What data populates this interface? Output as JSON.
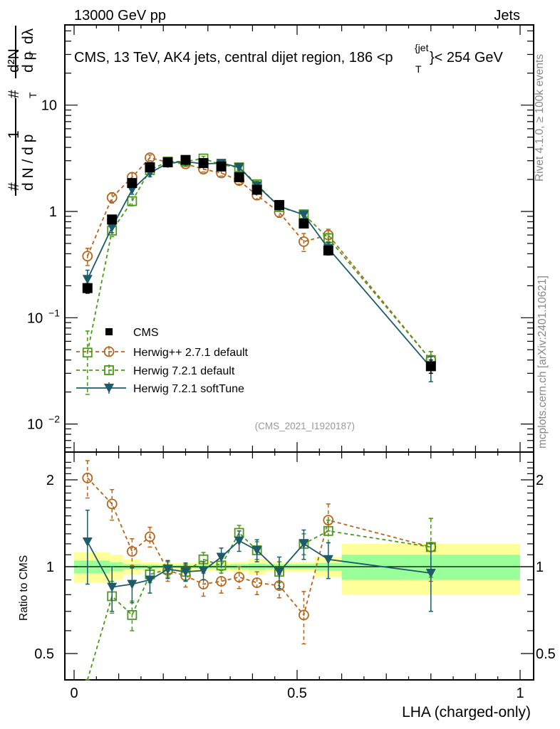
{
  "header": {
    "left": "13000 GeV pp",
    "right": "Jets"
  },
  "side_labels": {
    "rivet": "Rivet 4.1.0, ≥ 100k events",
    "mcplots": "mcplots.cern.ch [arXiv:2401.10621]"
  },
  "chart_data": [
    {
      "type": "line",
      "panel": "main",
      "title": "CMS, 13 TeV, AK4 jets, central dijet region, 186 <p_T^{jet}< 254 GeV",
      "title_parts": {
        "main": "CMS, 13 TeV, AK4 jets, central dijet region, 186 <p",
        "sup": "{jet",
        "sub": "T",
        "tail": "}< 254 GeV"
      },
      "ylabel": "1/N dN/dp_T d²N/dp_T dλ",
      "ylabel_parts": {
        "hash": "#",
        "one": "1",
        "dN": "d N / d p",
        "T": "T",
        "d2N": "d²N",
        "dpT": "d p",
        "dl": "dλ"
      },
      "xlabel": "",
      "yscale": "log",
      "ylim": [
        0.006,
        60
      ],
      "xlim": [
        -0.02,
        1.02
      ],
      "ytick_labels": [
        {
          "value": 10,
          "label": "10"
        },
        {
          "value": 1,
          "label": "1"
        },
        {
          "value": 0.1,
          "label": "10",
          "exp": "−1"
        },
        {
          "value": 0.01,
          "label": "10",
          "exp": "−2"
        }
      ],
      "analysis_id": "(CMS_2021_I1920187)",
      "x": [
        0.03,
        0.085,
        0.13,
        0.17,
        0.21,
        0.25,
        0.29,
        0.33,
        0.37,
        0.41,
        0.46,
        0.515,
        0.57,
        0.8
      ],
      "series": [
        {
          "name": "CMS",
          "marker": "filled-square",
          "line": "none",
          "color": "#000000",
          "values": [
            0.19,
            0.84,
            1.85,
            2.6,
            2.9,
            3.05,
            2.85,
            2.65,
            2.1,
            1.6,
            1.15,
            0.77,
            0.43,
            0.035
          ],
          "err": [
            0.02,
            0.06,
            0.1,
            0.12,
            0.12,
            0.12,
            0.12,
            0.12,
            0.1,
            0.08,
            0.06,
            0.05,
            0.04,
            0.005
          ]
        },
        {
          "name": "Herwig++ 2.7.1 default",
          "marker": "open-circle",
          "line": "dashed",
          "color": "#b5651d",
          "values": [
            0.38,
            1.35,
            2.1,
            3.2,
            2.9,
            2.8,
            2.5,
            2.3,
            1.95,
            1.42,
            0.98,
            0.52,
            0.6,
            0.04
          ],
          "err": [
            0.07,
            0.15,
            0.2,
            0.2,
            0.15,
            0.15,
            0.15,
            0.15,
            0.15,
            0.12,
            0.1,
            0.1,
            0.08,
            0.008
          ]
        },
        {
          "name": "Herwig 7.2.1 default",
          "marker": "open-square",
          "line": "dashed",
          "color": "#4a9a1a",
          "values": [
            0.047,
            0.66,
            1.25,
            2.45,
            2.95,
            2.95,
            3.15,
            2.75,
            2.6,
            1.8,
            1.1,
            0.94,
            0.56,
            0.04
          ],
          "err": [
            0.028,
            0.08,
            0.12,
            0.15,
            0.15,
            0.15,
            0.15,
            0.15,
            0.15,
            0.12,
            0.08,
            0.08,
            0.06,
            0.008
          ]
        },
        {
          "name": "Herwig 7.2.1 softTune",
          "marker": "filled-triangle-down",
          "line": "solid",
          "color": "#1d5b6b",
          "values": [
            0.23,
            0.71,
            1.6,
            2.3,
            2.85,
            2.95,
            2.8,
            2.85,
            2.6,
            1.75,
            1.12,
            0.93,
            0.45,
            0.034
          ],
          "err": [
            0.05,
            0.08,
            0.15,
            0.18,
            0.15,
            0.15,
            0.15,
            0.15,
            0.15,
            0.12,
            0.08,
            0.08,
            0.06,
            0.009
          ]
        }
      ],
      "legend": {
        "placement": "lower-left",
        "entries": [
          "CMS",
          "Herwig++ 2.7.1 default",
          "Herwig 7.2.1 default",
          "Herwig 7.2.1 softTune"
        ]
      }
    },
    {
      "type": "line",
      "panel": "ratio",
      "ylabel": "Ratio to CMS",
      "xlabel": "LHA (charged-only)",
      "yscale": "log",
      "ylim": [
        0.43,
        2.4
      ],
      "xlim": [
        -0.02,
        1.02
      ],
      "ytick_labels": [
        {
          "value": 2,
          "label": "2"
        },
        {
          "value": 1,
          "label": "1"
        },
        {
          "value": 0.5,
          "label": "0.5"
        }
      ],
      "xtick_labels": [
        {
          "value": 0,
          "label": "0"
        },
        {
          "value": 0.5,
          "label": "0.5"
        },
        {
          "value": 1,
          "label": "1"
        }
      ],
      "reference": 1,
      "bands": {
        "bin_edges": [
          0.0,
          0.08,
          0.11,
          0.15,
          0.19,
          0.23,
          0.27,
          0.31,
          0.35,
          0.39,
          0.43,
          0.49,
          0.54,
          0.6,
          1.0
        ],
        "inner": [
          0.05,
          0.035,
          0.02,
          0.015,
          0.012,
          0.012,
          0.015,
          0.015,
          0.02,
          0.025,
          0.02,
          0.02,
          0.03,
          0.1
        ],
        "outer": [
          0.12,
          0.1,
          0.06,
          0.035,
          0.03,
          0.03,
          0.035,
          0.035,
          0.04,
          0.06,
          0.04,
          0.04,
          0.08,
          0.2
        ],
        "inner_color": "#99ff99",
        "outer_color": "#ffff99"
      },
      "x": [
        0.03,
        0.085,
        0.13,
        0.17,
        0.21,
        0.25,
        0.29,
        0.33,
        0.37,
        0.41,
        0.46,
        0.515,
        0.57,
        0.8
      ],
      "series": [
        {
          "name": "Herwig++ 2.7.1 default",
          "color": "#b5651d",
          "values": [
            2.03,
            1.65,
            1.13,
            1.27,
            0.97,
            0.93,
            0.87,
            0.89,
            0.92,
            0.88,
            0.86,
            0.68,
            1.45,
            1.17
          ],
          "err_lo": [
            0.3,
            0.2,
            0.12,
            0.1,
            0.08,
            0.08,
            0.08,
            0.08,
            0.08,
            0.08,
            0.08,
            0.14,
            0.12,
            0.28
          ],
          "err_hi": [
            0.3,
            0.2,
            0.12,
            0.1,
            0.08,
            0.08,
            0.08,
            0.08,
            0.08,
            0.08,
            0.08,
            0.14,
            0.2,
            0.3
          ]
        },
        {
          "name": "Herwig 7.2.1 default",
          "color": "#4a9a1a",
          "values": [
            0.25,
            0.79,
            0.68,
            0.94,
            0.98,
            0.96,
            1.06,
            1.01,
            1.31,
            1.14,
            0.96,
            1.2,
            1.33,
            1.17
          ],
          "err_lo": [
            0.15,
            0.1,
            0.08,
            0.06,
            0.06,
            0.06,
            0.06,
            0.06,
            0.08,
            0.08,
            0.08,
            0.1,
            0.12,
            0.25
          ],
          "err_hi": [
            0.15,
            0.1,
            0.08,
            0.06,
            0.06,
            0.06,
            0.06,
            0.06,
            0.08,
            0.08,
            0.08,
            0.1,
            0.12,
            0.3
          ]
        },
        {
          "name": "Herwig 7.2.1 softTune",
          "color": "#1d5b6b",
          "values": [
            1.22,
            0.85,
            0.87,
            0.9,
            0.98,
            0.96,
            0.97,
            1.08,
            1.23,
            1.14,
            0.96,
            1.2,
            1.06,
            0.95
          ],
          "err_lo": [
            0.35,
            0.15,
            0.12,
            0.09,
            0.07,
            0.07,
            0.07,
            0.08,
            0.1,
            0.1,
            0.12,
            0.14,
            0.15,
            0.25
          ],
          "err_hi": [
            0.35,
            0.15,
            0.12,
            0.09,
            0.07,
            0.07,
            0.07,
            0.08,
            0.1,
            0.1,
            0.12,
            0.14,
            0.15,
            0.25
          ]
        }
      ]
    }
  ]
}
